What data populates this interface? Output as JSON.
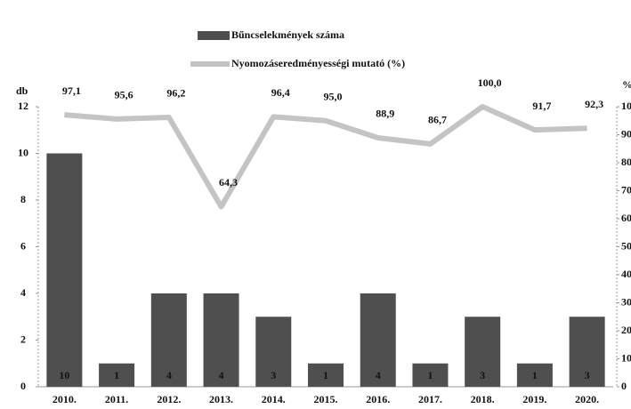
{
  "chart_data": {
    "type": "bar",
    "categories": [
      "2010.",
      "2011.",
      "2012.",
      "2013.",
      "2014.",
      "2015.",
      "2016.",
      "2017.",
      "2018.",
      "2019.",
      "2020."
    ],
    "series": [
      {
        "name": "Bűncselekmények száma",
        "type": "bar",
        "color": "#4f4f4f",
        "values": [
          10,
          1,
          4,
          4,
          3,
          1,
          4,
          1,
          3,
          1,
          3
        ]
      },
      {
        "name": "Nyomozáseredményességi mutató (%)",
        "type": "line",
        "axis": "y2",
        "color": "#c4c4c4",
        "values": [
          97.1,
          95.6,
          96.2,
          64.3,
          96.4,
          95.0,
          88.9,
          86.7,
          100.0,
          91.7,
          92.3
        ],
        "value_labels": [
          "97,1",
          "95,6",
          "96,2",
          "64,3",
          "96,4",
          "95,0",
          "88,9",
          "86,7",
          "100,0",
          "91,7",
          "92,3"
        ]
      }
    ],
    "ylabel": "db",
    "y2label": "%",
    "ylim": [
      0,
      12
    ],
    "yticks": [
      0,
      2,
      4,
      6,
      8,
      10,
      12
    ],
    "y2lim": [
      0,
      100
    ],
    "y2ticks": [
      0,
      10,
      20,
      30,
      40,
      50,
      60,
      70,
      80,
      90,
      100
    ]
  }
}
